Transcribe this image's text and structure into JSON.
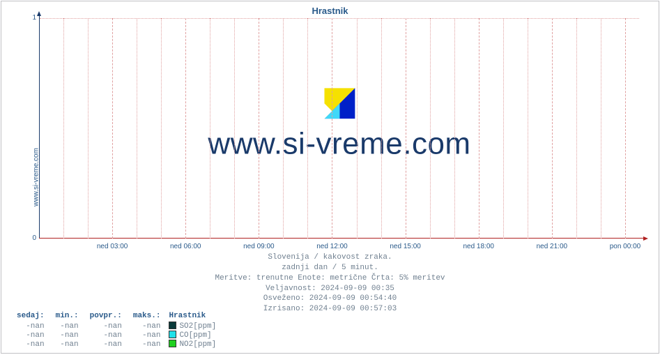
{
  "title": "Hrastnik",
  "side_label": "www.si-vreme.com",
  "watermark": "www.si-vreme.com",
  "logo": {
    "yellow": "#f5e100",
    "blue": "#0020c8",
    "cyan": "#40d8f8",
    "white": "#ffffff"
  },
  "chart": {
    "type": "line",
    "background": "#ffffff",
    "grid_color": "#e0a0a0",
    "x_axis_color": "#b02020",
    "y_axis_color": "#1a3a6a",
    "ylim": [
      0,
      1
    ],
    "yticks": [
      0,
      1
    ],
    "xticks": [
      "ned 03:00",
      "ned 06:00",
      "ned 09:00",
      "ned 12:00",
      "ned 15:00",
      "ned 18:00",
      "ned 21:00",
      "pon 00:00"
    ],
    "minor_x_per_major": 3
  },
  "info": {
    "line1": "Slovenija / kakovost zraka.",
    "line2": "zadnji dan / 5 minut.",
    "line3": "Meritve: trenutne  Enote: metrične  Črta: 5% meritev",
    "line4": "Veljavnost: 2024-09-09 00:35",
    "line5": "Osveženo: 2024-09-09 00:54:40",
    "line6": "Izrisano: 2024-09-09 00:57:03"
  },
  "legend": {
    "headers": {
      "now": "sedaj:",
      "min": "min.:",
      "avg": "povpr.:",
      "max": "maks.:",
      "site": "Hrastnik"
    },
    "rows": [
      {
        "now": "-nan",
        "min": "-nan",
        "avg": "-nan",
        "max": "-nan",
        "color": "#0a3a3a",
        "label": "SO2[ppm]"
      },
      {
        "now": "-nan",
        "min": "-nan",
        "avg": "-nan",
        "max": "-nan",
        "color": "#20e0e8",
        "label": "CO[ppm]"
      },
      {
        "now": "-nan",
        "min": "-nan",
        "avg": "-nan",
        "max": "-nan",
        "color": "#20d020",
        "label": "NO2[ppm]"
      }
    ]
  }
}
